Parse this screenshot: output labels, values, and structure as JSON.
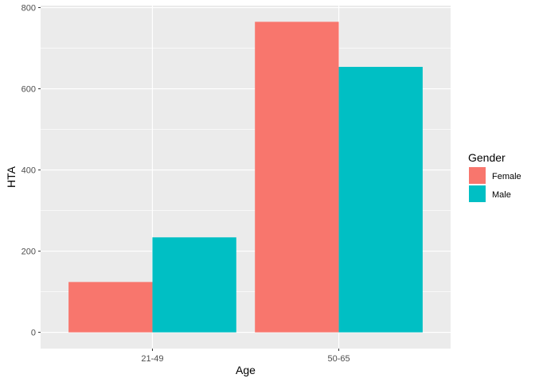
{
  "chart_data": {
    "type": "bar",
    "categories": [
      "21-49",
      "50-65"
    ],
    "series": [
      {
        "name": "Female",
        "values": [
          124,
          765
        ],
        "color": "#F8766D"
      },
      {
        "name": "Male",
        "values": [
          234,
          654
        ],
        "color": "#00BFC4"
      }
    ],
    "xlabel": "Age",
    "ylabel": "HTA",
    "ylim": [
      -40,
      805
    ],
    "yticks": [
      0,
      200,
      400,
      600,
      800
    ],
    "ytick_labels": [
      "0",
      "200",
      "400",
      "600",
      "800"
    ],
    "grid": true,
    "panel_background": "#EBEBEB",
    "gridline_color": "#FFFFFF",
    "legend": {
      "title": "Gender",
      "position": "right"
    }
  }
}
